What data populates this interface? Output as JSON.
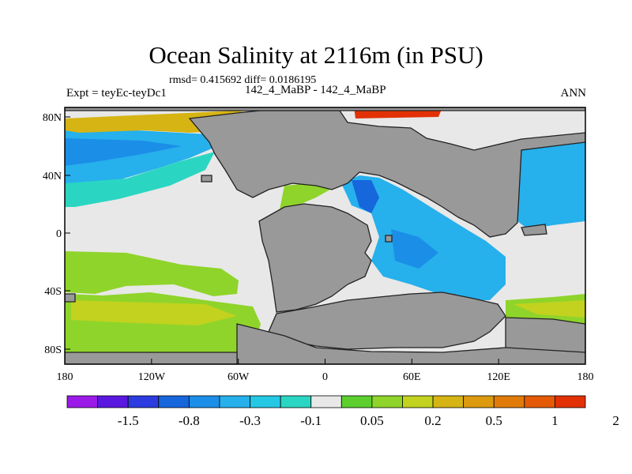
{
  "title": "Ocean Salinity at 2116m (in PSU)",
  "stats_line": "rmsd= 0.415692 diff= 0.0186195",
  "left_label": "Expt = teyEc-teyDc1",
  "center_label": "142_4_MaBP - 142_4_MaBP",
  "right_label": "ANN",
  "y_ticks": [
    "80N",
    "40N",
    "0",
    "40S",
    "80S"
  ],
  "x_ticks": [
    "180",
    "120W",
    "60W",
    "0",
    "60E",
    "120E",
    "180"
  ],
  "colorbar": {
    "colors": [
      "#9b1ae8",
      "#5a17e0",
      "#2c3ce0",
      "#1666dc",
      "#1b8ee8",
      "#26b0ec",
      "#25c8e4",
      "#2ad6c2",
      "#e8e8e8",
      "#5ccf2f",
      "#8fd42a",
      "#c2d21f",
      "#d6b414",
      "#dd9a0e",
      "#e07b0a",
      "#e45a07",
      "#e23105"
    ],
    "labels": [
      "-1.5",
      "-0.8",
      "-0.3",
      "-0.1",
      "0.05",
      "0.2",
      "0.5",
      "1",
      "2"
    ]
  },
  "colors": {
    "land": "#999999",
    "coast": "#222222"
  }
}
